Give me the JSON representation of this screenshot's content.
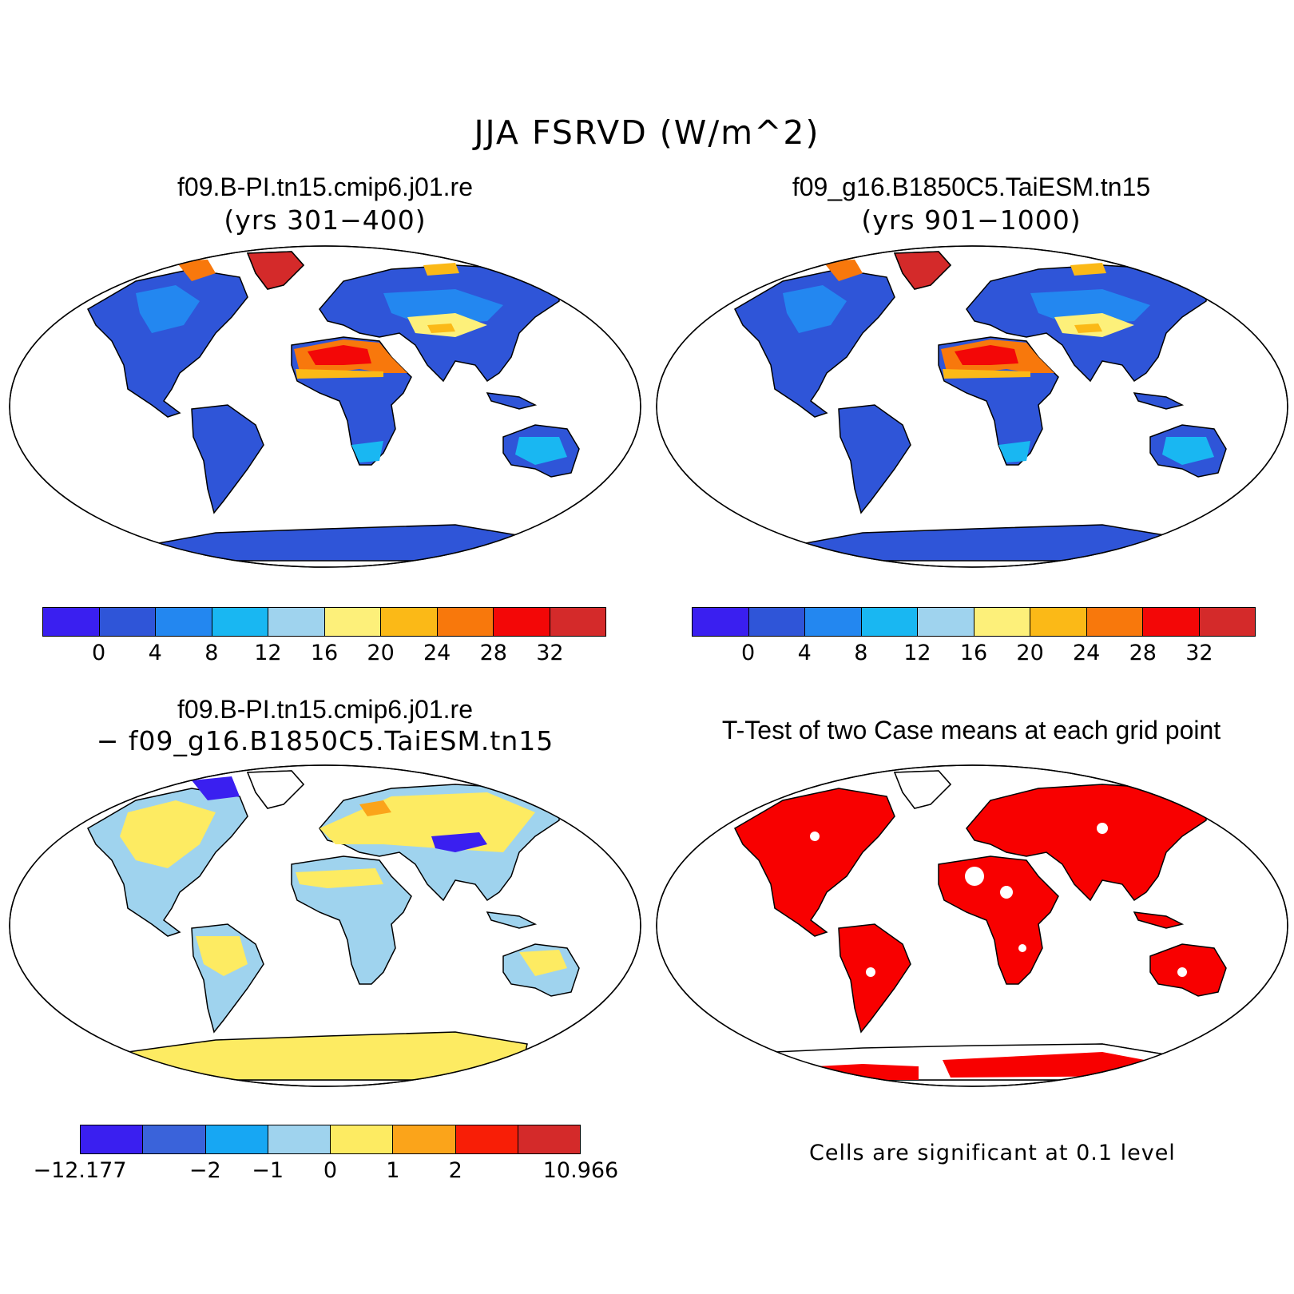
{
  "figure": {
    "title": "JJA FSRVD (W/m^2)"
  },
  "panels": [
    {
      "title": "f09.B-PI.tn15.cmip6.j01.re",
      "subtitle": "(yrs 301−400)"
    },
    {
      "title": "f09_g16.B1850C5.TaiESM.tn15",
      "subtitle": "(yrs 901−1000)"
    },
    {
      "title": "f09.B-PI.tn15.cmip6.j01.re",
      "subtitle": "− f09_g16.B1850C5.TaiESM.tn15"
    },
    {
      "title": "T-Test of two Case means at each grid point",
      "footnote": "Cells are significant at 0.1 level"
    }
  ],
  "colorbars": {
    "absolute": {
      "colors": [
        "#3a1ff0",
        "#2f55d8",
        "#2387f0",
        "#19b7f2",
        "#9fd3ee",
        "#fdf07a",
        "#fbb917",
        "#f8780c",
        "#f30707",
        "#d42a2a"
      ],
      "labels": [
        "0",
        "4",
        "8",
        "12",
        "16",
        "20",
        "24",
        "28",
        "32"
      ]
    },
    "difference": {
      "colors": [
        "#3a1ff0",
        "#3a63da",
        "#17a7f3",
        "#9fd3ee",
        "#fdeb62",
        "#fba41a",
        "#f81e06",
        "#d42a2a"
      ],
      "labels": [
        "−12.177",
        "−2",
        "−1",
        "0",
        "1",
        "2",
        "10.966"
      ]
    },
    "significance_color": "#f80000"
  }
}
